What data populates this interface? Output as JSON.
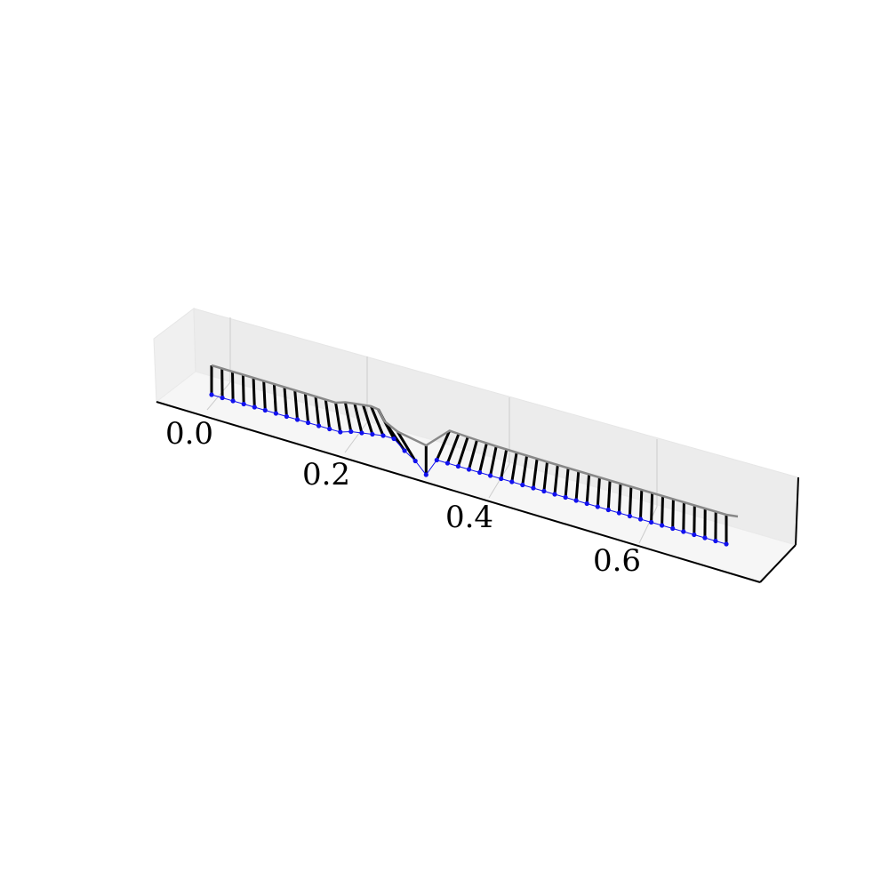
{
  "chart_data": {
    "type": "3d-line-with-stems",
    "title": "",
    "xlabel": "",
    "ylabel": "",
    "zlabel": "",
    "x_ticks": [
      "0.0",
      "0.2",
      "0.4",
      "0.6"
    ],
    "xlim": [
      -0.05,
      0.8
    ],
    "grid": true,
    "colors": {
      "points": "#1111ee",
      "stems": "#000000",
      "top_line": "#888888"
    },
    "points_count": 49,
    "x": [
      0.0,
      0.015,
      0.03,
      0.045,
      0.06,
      0.075,
      0.09,
      0.105,
      0.12,
      0.135,
      0.15,
      0.165,
      0.18,
      0.195,
      0.21,
      0.225,
      0.24,
      0.255,
      0.27,
      0.285,
      0.3,
      0.315,
      0.33,
      0.345,
      0.36,
      0.375,
      0.39,
      0.405,
      0.42,
      0.435,
      0.45,
      0.465,
      0.48,
      0.495,
      0.51,
      0.525,
      0.54,
      0.555,
      0.57,
      0.585,
      0.6,
      0.615,
      0.63,
      0.645,
      0.66,
      0.675,
      0.69,
      0.705,
      0.72
    ],
    "stem_lean": [
      0,
      0.1,
      0.15,
      0.2,
      0.3,
      0.4,
      0.5,
      0.6,
      0.7,
      0.8,
      0.9,
      1.1,
      1.3,
      1.6,
      2.0,
      2.6,
      3.4,
      4.4,
      5.6,
      5.0,
      -0.8,
      -2.4,
      -2.1,
      -1.8,
      -1.5,
      -1.3,
      -1.1,
      -1.0,
      -0.9,
      -0.8,
      -0.7,
      -0.6,
      -0.55,
      -0.5,
      -0.45,
      -0.4,
      -0.35,
      -0.3,
      -0.27,
      -0.24,
      -0.21,
      -0.18,
      -0.15,
      -0.12,
      -0.1,
      -0.08,
      -0.06,
      -0.04,
      0
    ]
  }
}
